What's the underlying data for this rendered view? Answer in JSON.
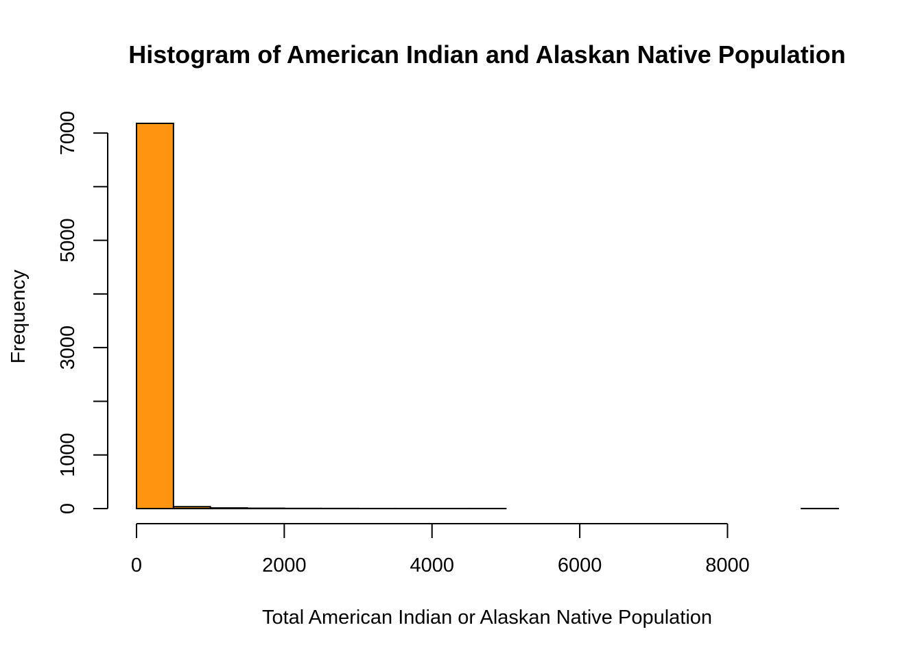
{
  "chart_data": {
    "type": "bar",
    "title": "Histogram of American Indian and Alaskan Native Population",
    "xlabel": "Total American Indian or Alaskan Native Population",
    "ylabel": "Frequency",
    "bin_width": 500,
    "bins": [
      {
        "x0": 0,
        "x1": 500,
        "count": 7180
      },
      {
        "x0": 500,
        "x1": 1000,
        "count": 35
      },
      {
        "x0": 1000,
        "x1": 1500,
        "count": 12
      },
      {
        "x0": 1500,
        "x1": 2000,
        "count": 6
      },
      {
        "x0": 2000,
        "x1": 2500,
        "count": 3
      },
      {
        "x0": 2500,
        "x1": 3000,
        "count": 2
      },
      {
        "x0": 3000,
        "x1": 3500,
        "count": 1
      },
      {
        "x0": 3500,
        "x1": 4000,
        "count": 1
      },
      {
        "x0": 4000,
        "x1": 4500,
        "count": 1
      },
      {
        "x0": 4500,
        "x1": 5000,
        "count": 1
      },
      {
        "x0": 5000,
        "x1": 5500,
        "count": 0
      },
      {
        "x0": 5500,
        "x1": 6000,
        "count": 0
      },
      {
        "x0": 6000,
        "x1": 6500,
        "count": 0
      },
      {
        "x0": 6500,
        "x1": 7000,
        "count": 0
      },
      {
        "x0": 7000,
        "x1": 7500,
        "count": 0
      },
      {
        "x0": 7500,
        "x1": 8000,
        "count": 0
      },
      {
        "x0": 8000,
        "x1": 8500,
        "count": 0
      },
      {
        "x0": 8500,
        "x1": 9000,
        "count": 0
      },
      {
        "x0": 9000,
        "x1": 9500,
        "count": 1
      }
    ],
    "xlim": [
      0,
      9500
    ],
    "ylim": [
      0,
      7180
    ],
    "x_ticks": [
      0,
      2000,
      4000,
      6000,
      8000
    ],
    "x_tick_labels": [
      "0",
      "2000",
      "4000",
      "6000",
      "8000"
    ],
    "y_ticks": [
      0,
      1000,
      2000,
      3000,
      4000,
      5000,
      6000,
      7000
    ],
    "y_tick_labels": [
      "0",
      "1000",
      "",
      "3000",
      "",
      "5000",
      "",
      "7000"
    ],
    "grid": false,
    "legend": "none",
    "bar_color": "#FF9410",
    "edge_color": "#000000"
  }
}
